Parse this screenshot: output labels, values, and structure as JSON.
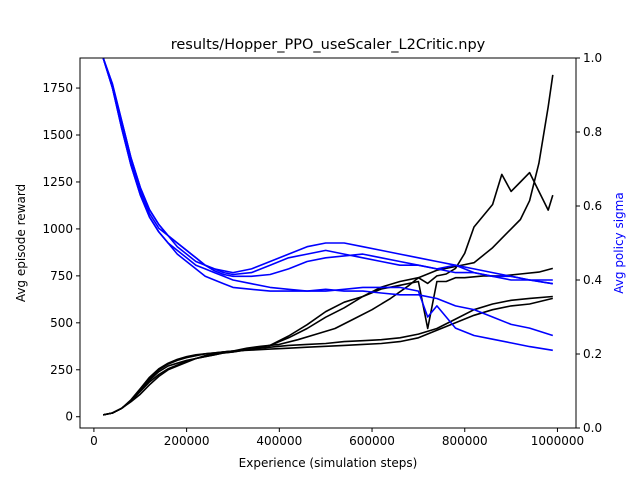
{
  "chart_data": {
    "type": "line",
    "title": "results/Hopper_PPO_useScaler_L2Critic.npy",
    "xlabel": "Experience (simulation steps)",
    "ylabel": "Avg episode reward",
    "ylabel_right": "Avg policy sigma",
    "xlim": [
      -30000,
      1040000
    ],
    "ylim": [
      -60,
      1910
    ],
    "ylim_right": [
      0.0,
      1.0
    ],
    "xticks": [
      0,
      200000,
      400000,
      600000,
      800000,
      1000000
    ],
    "xtick_labels": [
      "0",
      "200000",
      "400000",
      "600000",
      "800000",
      "1000000"
    ],
    "yticks": [
      0,
      250,
      500,
      750,
      1000,
      1250,
      1500,
      1750
    ],
    "ytick_labels": [
      "0",
      "250",
      "500",
      "750",
      "1000",
      "1250",
      "1500",
      "1750"
    ],
    "yticks_right": [
      0.0,
      0.2,
      0.4,
      0.6,
      0.8,
      1.0
    ],
    "ytick_labels_right": [
      "0.0",
      "0.2",
      "0.4",
      "0.6",
      "0.8",
      "1.0"
    ],
    "grid": false,
    "colors": {
      "reward": "#000000",
      "sigma": "#0000ff"
    },
    "reward_series": [
      {
        "x": [
          20000,
          40000,
          60000,
          80000,
          100000,
          120000,
          140000,
          160000,
          180000,
          200000,
          220000,
          240000,
          260000,
          280000,
          300000,
          330000,
          360000,
          400000,
          440000,
          480000,
          520000,
          560000,
          600000,
          640000,
          680000,
          700000,
          720000,
          740000,
          760000,
          780000,
          800000,
          820000,
          840000,
          860000,
          880000,
          900000,
          920000,
          940000,
          960000,
          980000,
          990000
        ],
        "y": [
          10,
          20,
          45,
          80,
          120,
          170,
          215,
          250,
          270,
          290,
          310,
          325,
          335,
          345,
          350,
          365,
          375,
          385,
          410,
          440,
          470,
          520,
          570,
          630,
          700,
          740,
          760,
          780,
          790,
          800,
          810,
          820,
          860,
          900,
          950,
          1000,
          1050,
          1150,
          1350,
          1650,
          1820
        ]
      },
      {
        "x": [
          20000,
          40000,
          60000,
          80000,
          100000,
          120000,
          140000,
          160000,
          180000,
          200000,
          220000,
          240000,
          260000,
          280000,
          300000,
          340000,
          380000,
          420000,
          460000,
          500000,
          540000,
          580000,
          620000,
          660000,
          700000,
          720000,
          740000,
          760000,
          780000,
          800000,
          820000,
          840000,
          860000,
          880000,
          900000,
          920000,
          940000,
          960000,
          980000,
          990000
        ],
        "y": [
          10,
          20,
          45,
          85,
          135,
          185,
          225,
          255,
          275,
          295,
          310,
          320,
          330,
          340,
          345,
          360,
          380,
          420,
          470,
          530,
          580,
          640,
          690,
          720,
          740,
          710,
          750,
          760,
          790,
          870,
          1010,
          1070,
          1130,
          1290,
          1200,
          1250,
          1300,
          1200,
          1100,
          1180
        ]
      },
      {
        "x": [
          20000,
          40000,
          60000,
          80000,
          100000,
          120000,
          140000,
          160000,
          180000,
          200000,
          220000,
          240000,
          260000,
          280000,
          300000,
          340000,
          380000,
          420000,
          460000,
          500000,
          540000,
          580000,
          620000,
          660000,
          700000,
          720000,
          740000,
          760000,
          780000,
          800000,
          840000,
          880000,
          920000,
          960000,
          990000
        ],
        "y": [
          10,
          20,
          45,
          85,
          140,
          195,
          240,
          270,
          285,
          300,
          310,
          320,
          330,
          340,
          345,
          360,
          380,
          430,
          490,
          560,
          610,
          640,
          680,
          700,
          720,
          470,
          720,
          720,
          740,
          740,
          750,
          750,
          760,
          770,
          790
        ]
      },
      {
        "x": [
          20000,
          40000,
          60000,
          80000,
          100000,
          120000,
          140000,
          160000,
          180000,
          200000,
          220000,
          240000,
          260000,
          280000,
          300000,
          340000,
          380000,
          420000,
          460000,
          500000,
          540000,
          580000,
          620000,
          660000,
          700000,
          740000,
          780000,
          820000,
          860000,
          900000,
          940000,
          990000
        ],
        "y": [
          10,
          20,
          45,
          85,
          140,
          200,
          250,
          280,
          300,
          315,
          325,
          335,
          340,
          345,
          350,
          360,
          370,
          380,
          385,
          390,
          400,
          405,
          410,
          420,
          440,
          470,
          520,
          570,
          600,
          620,
          630,
          640
        ]
      },
      {
        "x": [
          20000,
          40000,
          60000,
          80000,
          100000,
          120000,
          140000,
          160000,
          180000,
          200000,
          220000,
          240000,
          260000,
          280000,
          300000,
          340000,
          380000,
          420000,
          460000,
          500000,
          540000,
          580000,
          620000,
          660000,
          700000,
          740000,
          780000,
          820000,
          860000,
          900000,
          940000,
          990000
        ],
        "y": [
          10,
          20,
          45,
          90,
          150,
          210,
          255,
          285,
          305,
          320,
          330,
          335,
          340,
          345,
          350,
          355,
          360,
          365,
          370,
          375,
          380,
          385,
          390,
          400,
          420,
          460,
          500,
          540,
          570,
          590,
          600,
          630
        ]
      }
    ],
    "sigma_series": [
      {
        "x": [
          20000,
          40000,
          60000,
          80000,
          100000,
          120000,
          140000,
          160000,
          180000,
          200000,
          220000,
          240000,
          260000,
          280000,
          300000,
          340000,
          380000,
          420000,
          460000,
          500000,
          540000,
          580000,
          620000,
          660000,
          700000,
          740000,
          780000,
          820000,
          860000,
          900000,
          940000,
          990000
        ],
        "y": [
          1.0,
          0.93,
          0.83,
          0.73,
          0.65,
          0.59,
          0.55,
          0.52,
          0.5,
          0.48,
          0.46,
          0.44,
          0.425,
          0.415,
          0.41,
          0.41,
          0.415,
          0.43,
          0.45,
          0.46,
          0.465,
          0.47,
          0.46,
          0.45,
          0.44,
          0.43,
          0.42,
          0.42,
          0.41,
          0.4,
          0.4,
          0.39
        ]
      },
      {
        "x": [
          20000,
          40000,
          60000,
          80000,
          100000,
          120000,
          140000,
          160000,
          180000,
          200000,
          220000,
          240000,
          260000,
          280000,
          300000,
          340000,
          380000,
          420000,
          460000,
          500000,
          540000,
          580000,
          620000,
          660000,
          700000,
          740000,
          780000,
          820000,
          860000,
          900000,
          940000,
          990000
        ],
        "y": [
          1.0,
          0.92,
          0.82,
          0.72,
          0.64,
          0.58,
          0.54,
          0.52,
          0.5,
          0.48,
          0.46,
          0.44,
          0.43,
          0.42,
          0.415,
          0.42,
          0.44,
          0.46,
          0.47,
          0.48,
          0.47,
          0.46,
          0.45,
          0.44,
          0.44,
          0.43,
          0.44,
          0.42,
          0.41,
          0.41,
          0.4,
          0.4
        ]
      },
      {
        "x": [
          20000,
          40000,
          60000,
          80000,
          100000,
          120000,
          140000,
          160000,
          180000,
          200000,
          220000,
          240000,
          260000,
          280000,
          300000,
          340000,
          380000,
          420000,
          460000,
          500000,
          540000,
          580000,
          620000,
          660000,
          700000,
          740000,
          780000,
          820000,
          860000,
          900000,
          940000,
          990000
        ],
        "y": [
          1.0,
          0.92,
          0.81,
          0.71,
          0.63,
          0.57,
          0.53,
          0.5,
          0.48,
          0.46,
          0.44,
          0.43,
          0.42,
          0.41,
          0.4,
          0.39,
          0.38,
          0.375,
          0.37,
          0.375,
          0.37,
          0.37,
          0.365,
          0.36,
          0.36,
          0.35,
          0.33,
          0.32,
          0.3,
          0.28,
          0.27,
          0.25
        ]
      },
      {
        "x": [
          20000,
          40000,
          60000,
          80000,
          100000,
          120000,
          140000,
          160000,
          180000,
          200000,
          220000,
          240000,
          260000,
          280000,
          300000,
          340000,
          380000,
          420000,
          460000,
          500000,
          540000,
          580000,
          620000,
          660000,
          700000,
          720000,
          740000,
          780000,
          820000,
          860000,
          900000,
          940000,
          990000
        ],
        "y": [
          1.0,
          0.92,
          0.81,
          0.71,
          0.63,
          0.57,
          0.53,
          0.5,
          0.47,
          0.45,
          0.43,
          0.41,
          0.4,
          0.39,
          0.38,
          0.375,
          0.37,
          0.37,
          0.37,
          0.37,
          0.375,
          0.38,
          0.38,
          0.38,
          0.37,
          0.3,
          0.33,
          0.27,
          0.25,
          0.24,
          0.23,
          0.22,
          0.21
        ]
      },
      {
        "x": [
          20000,
          40000,
          60000,
          80000,
          100000,
          120000,
          140000,
          160000,
          180000,
          200000,
          220000,
          240000,
          260000,
          280000,
          300000,
          340000,
          380000,
          420000,
          460000,
          500000,
          540000,
          580000,
          620000,
          660000,
          700000,
          740000,
          780000,
          820000,
          860000,
          900000,
          940000,
          990000
        ],
        "y": [
          1.0,
          0.93,
          0.83,
          0.73,
          0.65,
          0.59,
          0.55,
          0.52,
          0.49,
          0.47,
          0.45,
          0.44,
          0.43,
          0.425,
          0.42,
          0.43,
          0.45,
          0.47,
          0.49,
          0.5,
          0.5,
          0.49,
          0.48,
          0.47,
          0.46,
          0.45,
          0.44,
          0.43,
          0.42,
          0.41,
          0.4,
          0.39
        ]
      }
    ]
  }
}
